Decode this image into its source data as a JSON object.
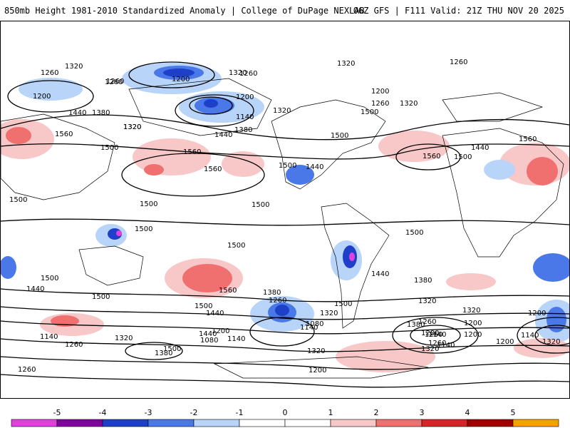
{
  "header": {
    "title": "850mb Height 1981-2010 Standardized Anomaly | College of DuPage NEXLAB",
    "run_info": "06Z GFS | F111 Valid: 21Z THU NOV 20 2025"
  },
  "map": {
    "variable": "850mb Height",
    "contour_labels": [
      "1320",
      "1260",
      "1200",
      "1260",
      "1200",
      "1320",
      "1260",
      "1200",
      "1140",
      "1320",
      "1320",
      "1260",
      "1320",
      "1260",
      "1320",
      "1260",
      "1200",
      "1440",
      "1380",
      "1320",
      "1560",
      "1500",
      "1500",
      "1440",
      "1380",
      "1560",
      "1500",
      "1560",
      "1560",
      "1500",
      "1440",
      "1560",
      "1500",
      "1440",
      "1500",
      "1500",
      "1500",
      "1500",
      "1500",
      "1500",
      "1500",
      "1500",
      "1440",
      "1500",
      "1440",
      "1380",
      "1320",
      "1260",
      "1200",
      "1140",
      "1080",
      "1560",
      "1500",
      "1440",
      "1380",
      "1320",
      "1260",
      "1200",
      "1140",
      "1080",
      "1320",
      "1260",
      "1200",
      "1140",
      "1200",
      "1140",
      "1380",
      "1320",
      "1260",
      "1200",
      "1140",
      "1260",
      "1320",
      "1500",
      "1440",
      "1380",
      "1320",
      "1260",
      "1200",
      "1140",
      "1320",
      "1200"
    ],
    "anomaly_colors": {
      "neg5": "#e040e0",
      "neg4": "#8000a0",
      "neg3": "#1e40c8",
      "neg2": "#4a78e8",
      "neg1": "#b8d4f8",
      "zero": "#ffffff",
      "pos1": "#f8c8c8",
      "pos2": "#f07070",
      "pos3": "#d02828",
      "pos4": "#a00000",
      "pos5": "#f8a000"
    }
  },
  "colorbar": {
    "ticks": [
      "-5",
      "-4",
      "-3",
      "-2",
      "-1",
      "0",
      "1",
      "2",
      "3",
      "4",
      "5"
    ],
    "colors": [
      "#e040e0",
      "#8000a0",
      "#1e40c8",
      "#4a78e8",
      "#b8d4f8",
      "#ffffff",
      "#ffffff",
      "#f8c8c8",
      "#f07070",
      "#d02828",
      "#a00000",
      "#f8a000"
    ]
  }
}
